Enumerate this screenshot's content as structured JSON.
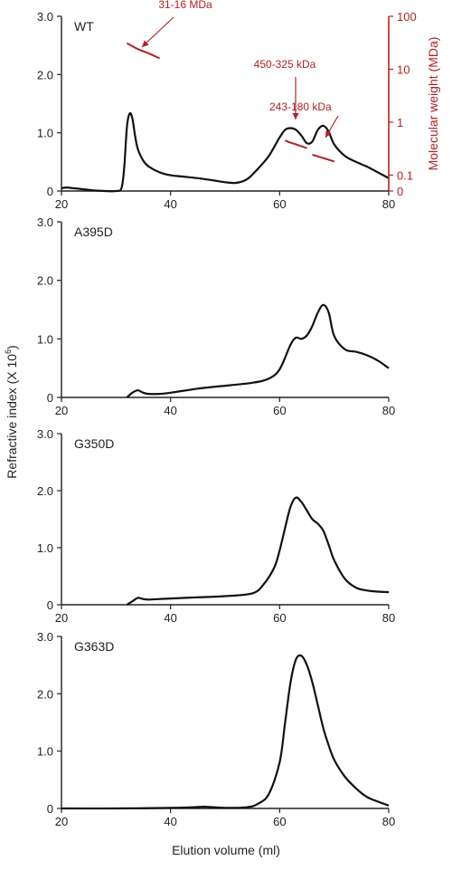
{
  "figure": {
    "shared_ylabel": "Refractive index (X 10",
    "shared_ylabel_exp": "6",
    "shared_ylabel_close": ")",
    "shared_xlabel": "Elution volume (ml)",
    "colors": {
      "curve": "#111111",
      "axis": "#222222",
      "mw": "#b22222"
    }
  },
  "chart_data": [
    {
      "type": "line",
      "panel_label": "WT",
      "xlim": [
        20,
        80
      ],
      "ylim": [
        0,
        3.0
      ],
      "xticks": [
        20,
        40,
        60,
        80
      ],
      "yticks": [
        0,
        1.0,
        2.0,
        3.0
      ],
      "ytick_labels": [
        "0",
        "1.0",
        "2.0",
        "3.0"
      ],
      "series": [
        {
          "x": [
            20,
            21,
            22,
            23,
            24,
            25,
            26,
            28,
            30,
            31,
            31.5,
            32,
            32.5,
            33,
            33.5,
            34,
            35,
            36,
            38,
            40,
            42,
            45,
            48,
            50,
            52,
            54,
            56,
            58,
            60,
            61,
            62,
            63,
            64,
            65,
            66,
            67,
            68,
            69,
            70,
            72,
            74,
            76,
            78,
            80
          ],
          "y": [
            0.05,
            0.06,
            0.05,
            0.04,
            0.03,
            0.02,
            0.01,
            0,
            0,
            0.05,
            0.4,
            1.1,
            1.33,
            1.25,
            0.95,
            0.72,
            0.52,
            0.42,
            0.32,
            0.27,
            0.25,
            0.22,
            0.18,
            0.15,
            0.14,
            0.2,
            0.38,
            0.6,
            0.92,
            1.05,
            1.08,
            1.05,
            0.95,
            0.82,
            0.85,
            1.05,
            1.12,
            1.02,
            0.8,
            0.6,
            0.5,
            0.42,
            0.32,
            0.22
          ]
        }
      ],
      "mw_axis": {
        "label": "Molecular weight (MDa)",
        "ticks": [
          0,
          0.1,
          1,
          10,
          100
        ],
        "tick_labels": [
          "0",
          "0.1",
          "1",
          "10",
          "100"
        ]
      },
      "mw_traces": [
        {
          "x": [
            32,
            34,
            36,
            38
          ],
          "mw": [
            31,
            24,
            20,
            16
          ]
        },
        {
          "x": [
            61,
            62,
            63,
            64,
            65
          ],
          "mw": [
            0.45,
            0.41,
            0.38,
            0.35,
            0.325
          ]
        },
        {
          "x": [
            66,
            67,
            68,
            69,
            70
          ],
          "mw": [
            0.243,
            0.225,
            0.21,
            0.195,
            0.18
          ]
        }
      ],
      "annotations": [
        "31-16 MDa",
        "450-325 kDa",
        "243-180 kDa"
      ]
    },
    {
      "type": "line",
      "panel_label": "A395D",
      "xlim": [
        20,
        80
      ],
      "ylim": [
        0,
        3.0
      ],
      "xticks": [
        20,
        40,
        60,
        80
      ],
      "yticks": [
        0,
        1.0,
        2.0,
        3.0
      ],
      "ytick_labels": [
        "0",
        "1.0",
        "2.0",
        "3.0"
      ],
      "series": [
        {
          "x": [
            32,
            33,
            34,
            35,
            36,
            38,
            40,
            45,
            50,
            55,
            58,
            60,
            62,
            63,
            64,
            65,
            66,
            67,
            68,
            69,
            70,
            72,
            74,
            76,
            78,
            80
          ],
          "y": [
            0,
            0.08,
            0.12,
            0.08,
            0.06,
            0.06,
            0.08,
            0.15,
            0.2,
            0.25,
            0.32,
            0.48,
            0.9,
            1.02,
            1.0,
            1.06,
            1.22,
            1.45,
            1.58,
            1.45,
            1.05,
            0.82,
            0.78,
            0.72,
            0.63,
            0.5
          ]
        }
      ]
    },
    {
      "type": "line",
      "panel_label": "G350D",
      "xlim": [
        20,
        80
      ],
      "ylim": [
        0,
        3.0
      ],
      "xticks": [
        20,
        40,
        60,
        80
      ],
      "yticks": [
        0,
        1.0,
        2.0,
        3.0
      ],
      "ytick_labels": [
        "0",
        "1.0",
        "2.0",
        "3.0"
      ],
      "series": [
        {
          "x": [
            32,
            33,
            34,
            35,
            36,
            38,
            40,
            45,
            50,
            55,
            57,
            59,
            60,
            61,
            62,
            63,
            64,
            65,
            66,
            67,
            68,
            69,
            70,
            72,
            74,
            76,
            78,
            80
          ],
          "y": [
            0,
            0.06,
            0.12,
            0.1,
            0.09,
            0.1,
            0.11,
            0.13,
            0.15,
            0.2,
            0.35,
            0.65,
            0.95,
            1.35,
            1.72,
            1.88,
            1.8,
            1.65,
            1.5,
            1.42,
            1.3,
            1.05,
            0.78,
            0.45,
            0.3,
            0.25,
            0.23,
            0.22
          ]
        }
      ]
    },
    {
      "type": "line",
      "panel_label": "G363D",
      "xlim": [
        20,
        80
      ],
      "ylim": [
        0,
        3.0
      ],
      "xticks": [
        20,
        40,
        60,
        80
      ],
      "yticks": [
        0,
        1.0,
        2.0,
        3.0
      ],
      "ytick_labels": [
        "0",
        "1.0",
        "2.0",
        "3.0"
      ],
      "series": [
        {
          "x": [
            20,
            30,
            40,
            44,
            46,
            48,
            50,
            54,
            56,
            58,
            60,
            61,
            62,
            63,
            64,
            65,
            66,
            67,
            68,
            69,
            70,
            72,
            74,
            76,
            78,
            80
          ],
          "y": [
            0,
            0,
            0.01,
            0.02,
            0.03,
            0.02,
            0.01,
            0.02,
            0.08,
            0.25,
            0.8,
            1.5,
            2.2,
            2.6,
            2.66,
            2.5,
            2.2,
            1.8,
            1.4,
            1.1,
            0.85,
            0.55,
            0.35,
            0.2,
            0.12,
            0.05
          ]
        }
      ]
    }
  ]
}
